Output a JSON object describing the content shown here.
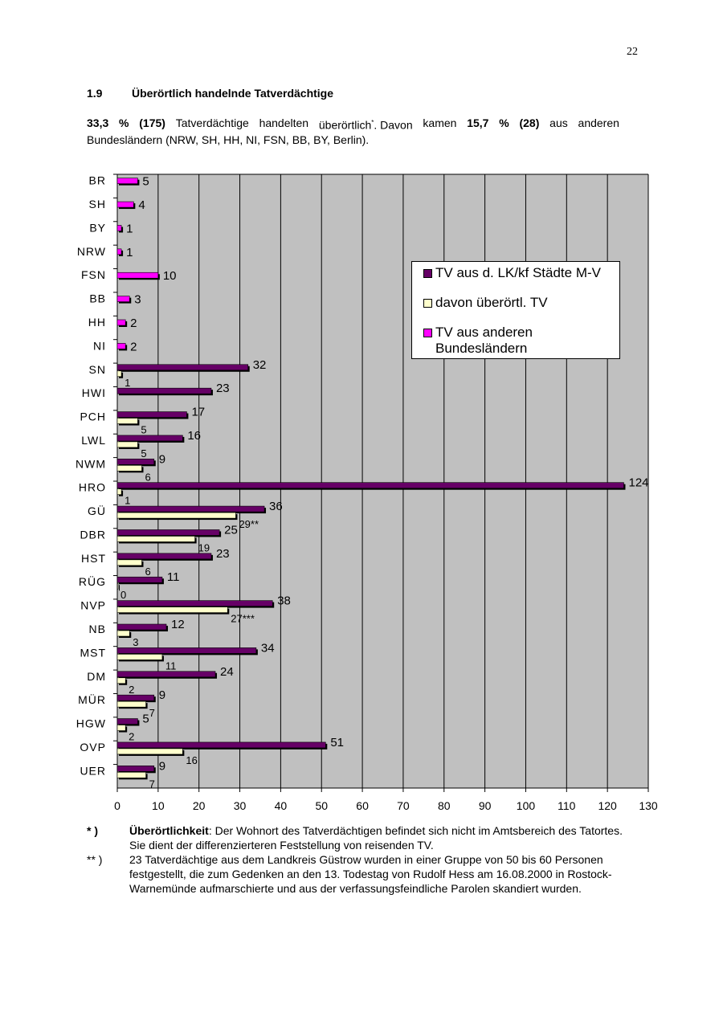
{
  "page_number": "22",
  "section": {
    "number": "1.9",
    "title": "Überörtlich handelnde Tatverdächtige"
  },
  "intro": {
    "pct1": "33,3",
    "pct_sign1": "%",
    "count1": "(175)",
    "w1": "Tatverdächtige",
    "w2": "handelten",
    "w3": "überörtlich",
    "star": "*",
    "w4": ". Davon",
    "w5": "kamen",
    "pct2": "15,7",
    "pct_sign2": "%",
    "count2": "(28)",
    "w6": "aus",
    "w7": "anderen",
    "line2": "Bundesländern (NRW, SH, HH, NI, FSN, BB, BY, Berlin)."
  },
  "legend": {
    "item1": "TV aus d. LK/kf Städte M-V",
    "item2": "davon überörtl. TV",
    "item3_a": "TV aus anderen",
    "item3_b": "Bundesländern"
  },
  "colors": {
    "plot_bg": "#c0c0c0",
    "lk": "#660066",
    "ueber": "#ffffcc",
    "andere": "#ff00ff"
  },
  "chart_data": {
    "type": "bar",
    "orientation": "horizontal",
    "categories": [
      "BR",
      "SH",
      "BY",
      "NRW",
      "FSN",
      "BB",
      "HH",
      "NI",
      "SN",
      "HWI",
      "PCH",
      "LWL",
      "NWM",
      "HRO",
      "GÜ",
      "DBR",
      "HST",
      "RÜG",
      "NVP",
      "NB",
      "MST",
      "DM",
      "MÜR",
      "HGW",
      "OVP",
      "UER"
    ],
    "series": [
      {
        "name": "TV aus d. LK/kf Städte M-V",
        "values": [
          null,
          null,
          null,
          null,
          null,
          null,
          null,
          null,
          32,
          23,
          17,
          16,
          9,
          124,
          36,
          25,
          23,
          11,
          38,
          12,
          34,
          24,
          9,
          5,
          51,
          9
        ]
      },
      {
        "name": "davon überörtl. TV",
        "values": [
          null,
          null,
          null,
          null,
          null,
          null,
          null,
          null,
          1,
          null,
          5,
          5,
          6,
          1,
          29,
          19,
          6,
          0,
          27,
          3,
          11,
          2,
          7,
          2,
          16,
          7
        ]
      },
      {
        "name": "TV aus anderen Bundesländern",
        "values": [
          5,
          4,
          1,
          1,
          10,
          3,
          2,
          2,
          null,
          null,
          null,
          null,
          null,
          null,
          null,
          null,
          null,
          null,
          null,
          null,
          null,
          null,
          null,
          null,
          null,
          null
        ]
      }
    ],
    "label_suffixes": {
      "GÜ": "**",
      "NVP": "***"
    },
    "xlim": [
      0,
      130
    ],
    "xticks": [
      0,
      10,
      20,
      30,
      40,
      50,
      60,
      70,
      80,
      90,
      100,
      110,
      120,
      130
    ],
    "grid": "vertical",
    "legend_position": "right-upper"
  },
  "footnotes": [
    {
      "mark": "* )",
      "bold": "Überörtlichkeit",
      "text": ": Der Wohnort des Tatverdächtigen befindet sich nicht im Amtsbereich des Tatortes. Sie dient der differenzierteren Feststellung von reisenden TV."
    },
    {
      "mark": "** )",
      "bold": "",
      "text": "23 Tatverdächtige aus dem Landkreis Güstrow wurden in einer Gruppe von 50 bis 60 Personen festgestellt, die zum Gedenken an den 13. Todestag von Rudolf Hess am 16.08.2000 in Rostock-Warnemünde aufmarschierte und aus der verfassungsfeindliche Parolen skandiert wurden."
    }
  ]
}
